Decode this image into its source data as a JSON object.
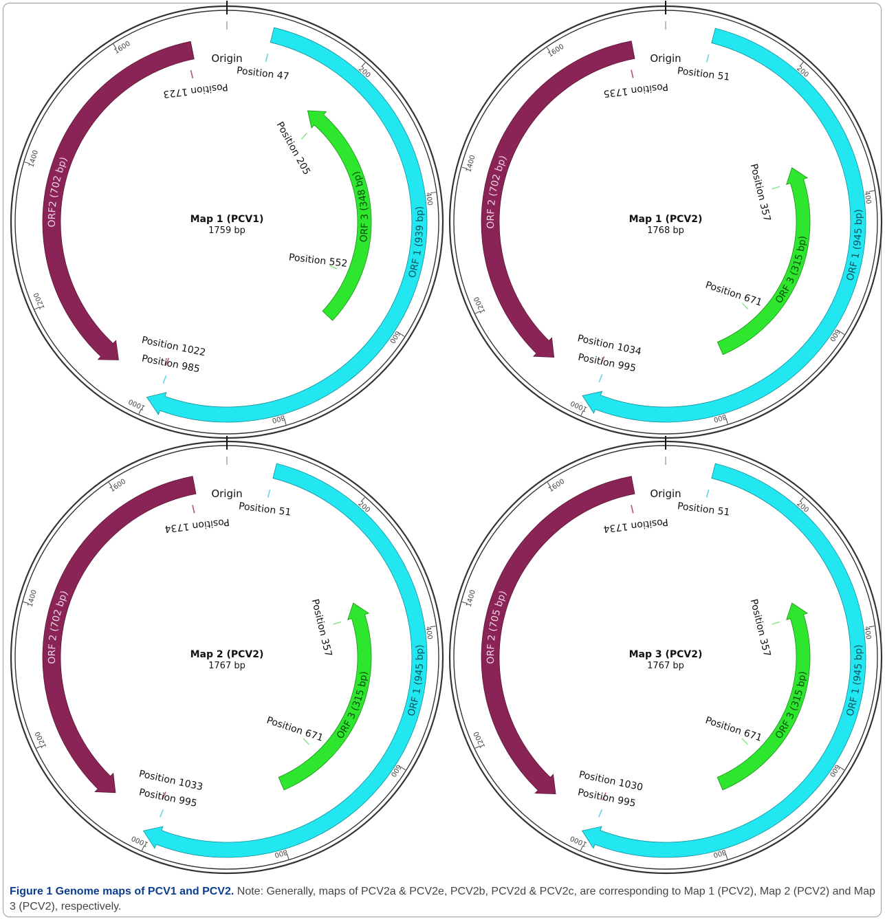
{
  "colors": {
    "orf1": "#22e6f0",
    "orf1_stroke": "#118f99",
    "orf2": "#8a2457",
    "orf2_stroke": "#5c1538",
    "orf3": "#2ee62e",
    "orf3_stroke": "#1a8f1a",
    "ring": "#333333",
    "caption_title": "#0a3d91"
  },
  "origin_label": "Origin",
  "maps": [
    {
      "title": "Map 1 (PCV1)",
      "size_label": "1759 bp",
      "length": 1759,
      "ticks": [
        "200",
        "400",
        "600",
        "800",
        "1000",
        "1200",
        "1400",
        "1600"
      ],
      "orf1_label": "ORF 1 (939 bp)",
      "orf2_label": "ORF2 (702 bp)",
      "orf3_label": "ORF 3 (348 bp)",
      "orf1_start": 47,
      "orf1_end": 985,
      "orf2_start": 1723,
      "orf2_end": 1022,
      "orf3_start": 552,
      "orf3_end": 205,
      "positions": [
        {
          "label": "Position 1723",
          "pos": 1723,
          "gene": "orf2"
        },
        {
          "label": "Position 47",
          "pos": 47,
          "gene": "orf1"
        },
        {
          "label": "Position 205",
          "pos": 205,
          "gene": "orf3"
        },
        {
          "label": "Position 552",
          "pos": 552,
          "gene": "orf3"
        },
        {
          "label": "Position 1022",
          "pos": 1022,
          "gene": "orf2"
        },
        {
          "label": "Position 985",
          "pos": 985,
          "gene": "orf1"
        }
      ]
    },
    {
      "title": "Map 1 (PCV2)",
      "size_label": "1768 bp",
      "length": 1768,
      "ticks": [
        "200",
        "400",
        "600",
        "800",
        "1000",
        "1200",
        "1400",
        "1600"
      ],
      "orf1_label": "ORF 1 (945 bp)",
      "orf2_label": "ORF 2 (702 bp)",
      "orf3_label": "ORF 3 (315 bp)",
      "orf1_start": 51,
      "orf1_end": 995,
      "orf2_start": 1735,
      "orf2_end": 1034,
      "orf3_start": 671,
      "orf3_end": 357,
      "positions": [
        {
          "label": "Position 1735",
          "pos": 1735,
          "gene": "orf2"
        },
        {
          "label": "Position 51",
          "pos": 51,
          "gene": "orf1"
        },
        {
          "label": "Position 357",
          "pos": 357,
          "gene": "orf3"
        },
        {
          "label": "Position 671",
          "pos": 671,
          "gene": "orf3"
        },
        {
          "label": "Position 1034",
          "pos": 1034,
          "gene": "orf2"
        },
        {
          "label": "Position 995",
          "pos": 995,
          "gene": "orf1"
        }
      ]
    },
    {
      "title": "Map 2 (PCV2)",
      "size_label": "1767 bp",
      "length": 1767,
      "ticks": [
        "200",
        "400",
        "600",
        "800",
        "1000",
        "1200",
        "1400",
        "1600"
      ],
      "orf1_label": "ORF 1 (945 bp)",
      "orf2_label": "ORF 2 (702 bp)",
      "orf3_label": "ORF 3 (315 bp)",
      "orf1_start": 51,
      "orf1_end": 995,
      "orf2_start": 1734,
      "orf2_end": 1033,
      "orf3_start": 671,
      "orf3_end": 357,
      "positions": [
        {
          "label": "Position 1734",
          "pos": 1734,
          "gene": "orf2"
        },
        {
          "label": "Position 51",
          "pos": 51,
          "gene": "orf1"
        },
        {
          "label": "Position 357",
          "pos": 357,
          "gene": "orf3"
        },
        {
          "label": "Position 671",
          "pos": 671,
          "gene": "orf3"
        },
        {
          "label": "Position 1033",
          "pos": 1033,
          "gene": "orf2"
        },
        {
          "label": "Position 995",
          "pos": 995,
          "gene": "orf1"
        }
      ]
    },
    {
      "title": "Map 3 (PCV2)",
      "size_label": "1767 bp",
      "length": 1767,
      "ticks": [
        "200",
        "400",
        "600",
        "800",
        "1000",
        "1200",
        "1400",
        "1600"
      ],
      "orf1_label": "ORF 1 (945 bp)",
      "orf2_label": "ORF 2 (705 bp)",
      "orf3_label": "ORF 3 (315 bp)",
      "orf1_start": 51,
      "orf1_end": 995,
      "orf2_start": 1734,
      "orf2_end": 1030,
      "orf3_start": 671,
      "orf3_end": 357,
      "positions": [
        {
          "label": "Position 1734",
          "pos": 1734,
          "gene": "orf2"
        },
        {
          "label": "Position 51",
          "pos": 51,
          "gene": "orf1"
        },
        {
          "label": "Position 357",
          "pos": 357,
          "gene": "orf3"
        },
        {
          "label": "Position 671",
          "pos": 671,
          "gene": "orf3"
        },
        {
          "label": "Position 1030",
          "pos": 1030,
          "gene": "orf2"
        },
        {
          "label": "Position 995",
          "pos": 995,
          "gene": "orf1"
        }
      ]
    }
  ],
  "caption": {
    "title": "Figure 1 Genome maps of PCV1 and PCV2.",
    "note": "Note: Generally, maps of PCV2a & PCV2e, PCV2b, PCV2d & PCV2c, are corresponding to Map 1 (PCV2), Map 2 (PCV2) and Map 3 (PCV2), respectively."
  }
}
